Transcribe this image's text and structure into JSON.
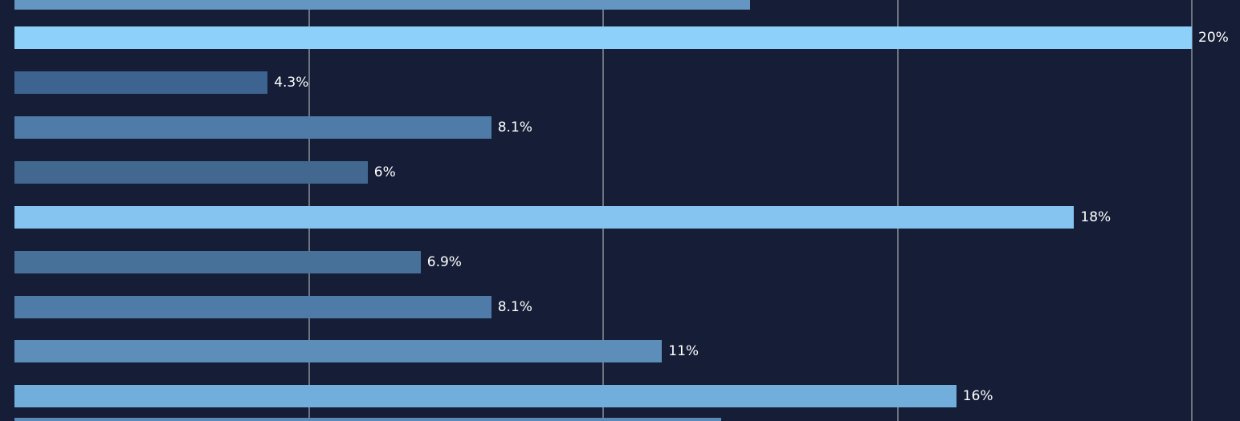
{
  "chart_data": {
    "type": "bar",
    "orientation": "horizontal",
    "title": "",
    "xlabel": "",
    "ylabel": "",
    "unit": "%",
    "background_color": "#151d37",
    "gridline_color": "#6e7382",
    "label_color": "#ffffff",
    "axis": {
      "min": 0,
      "max": 20.8,
      "gridlines_at": [
        5,
        10,
        15,
        20
      ],
      "grid": true,
      "tick_labels_visible": false
    },
    "legend": {
      "visible": false
    },
    "bars": [
      {
        "value": 12.5,
        "label": "",
        "color": "#6596c2",
        "clipped": "top"
      },
      {
        "value": 20,
        "label": "20%",
        "color": "#8dd0f9"
      },
      {
        "value": 4.3,
        "label": "4.3%",
        "color": "#3d6490"
      },
      {
        "value": 8.1,
        "label": "8.1%",
        "color": "#4e7ba7"
      },
      {
        "value": 6,
        "label": "6%",
        "color": "#42688f"
      },
      {
        "value": 18,
        "label": "18%",
        "color": "#85c4f0"
      },
      {
        "value": 6.9,
        "label": "6.9%",
        "color": "#477199"
      },
      {
        "value": 8.1,
        "label": "8.1%",
        "color": "#4e7ba7"
      },
      {
        "value": 11,
        "label": "11%",
        "color": "#5d8eba"
      },
      {
        "value": 16,
        "label": "16%",
        "color": "#72aedc"
      },
      {
        "value": 12,
        "label": "",
        "color": "#5a8ab5",
        "clipped": "bottom"
      }
    ]
  }
}
